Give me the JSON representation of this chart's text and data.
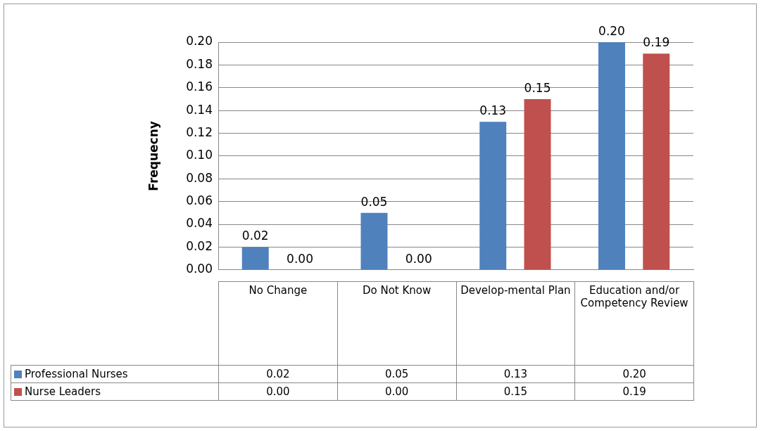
{
  "chart_data": {
    "type": "bar",
    "ylabel": "Frequecny",
    "categories": [
      "No Change",
      "Do Not Know",
      "Develop-mental Plan",
      "Education and/or Competency Review"
    ],
    "series": [
      {
        "name": "Professional Nurses",
        "color": "#4f81bd",
        "values": [
          0.02,
          0.05,
          0.13,
          0.2
        ],
        "value_labels": [
          "0.02",
          "0.05",
          "0.13",
          "0.20"
        ]
      },
      {
        "name": "Nurse Leaders",
        "color": "#c0504d",
        "values": [
          0,
          0,
          0.15,
          0.19
        ],
        "value_labels": [
          "0.00",
          "0.00",
          "0.15",
          "0.19"
        ]
      }
    ],
    "ylim": [
      0,
      0.2
    ],
    "yticks": [
      {
        "value": 0,
        "label": "0.00"
      },
      {
        "value": 0.02,
        "label": "0.02"
      },
      {
        "value": 0.04,
        "label": "0.04"
      },
      {
        "value": 0.06,
        "label": "0.06"
      },
      {
        "value": 0.08,
        "label": "0.08"
      },
      {
        "value": 0.1,
        "label": "0.10"
      },
      {
        "value": 0.12,
        "label": "0.12"
      },
      {
        "value": 0.14,
        "label": "0.14"
      },
      {
        "value": 0.16,
        "label": "0.16"
      },
      {
        "value": 0.18,
        "label": "0.18"
      },
      {
        "value": 0.2,
        "label": "0.20"
      }
    ],
    "grid": "y",
    "legend": "bottom"
  }
}
